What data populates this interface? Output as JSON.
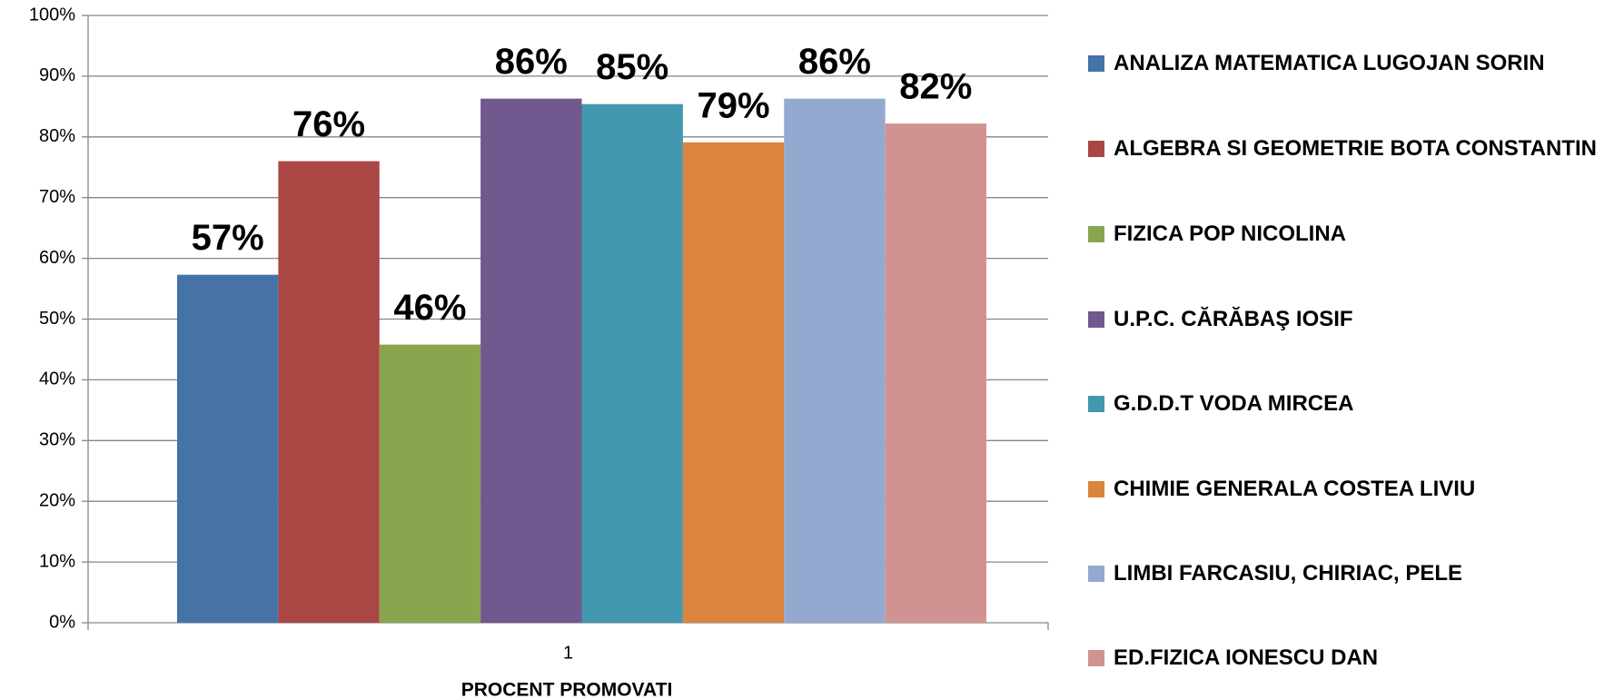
{
  "chart_data": {
    "type": "bar",
    "categories": [
      "1"
    ],
    "xlabel": "PROCENT PROMOVATI",
    "series": [
      {
        "name": "ANALIZA MATEMATICA LUGOJAN SORIN",
        "color": "#4572a7",
        "values": [
          57.3
        ],
        "value_labels": [
          "57%"
        ]
      },
      {
        "name": "ALGEBRA SI GEOMETRIE BOTA CONSTANTIN",
        "color": "#aa4643",
        "values": [
          76
        ],
        "value_labels": [
          "76%"
        ]
      },
      {
        "name": "FIZICA POP NICOLINA",
        "color": "#89a54e",
        "values": [
          45.8
        ],
        "value_labels": [
          "46%"
        ]
      },
      {
        "name": "U.P.C. CĂRĂBAŞ IOSIF",
        "color": "#71588f",
        "values": [
          86.3
        ],
        "value_labels": [
          "86%"
        ]
      },
      {
        "name": "G.D.D.T VODA MIRCEA",
        "color": "#4198af",
        "values": [
          85.4
        ],
        "value_labels": [
          "85%"
        ]
      },
      {
        "name": "CHIMIE GENERALA COSTEA LIVIU",
        "color": "#db843d",
        "values": [
          79.1
        ],
        "value_labels": [
          "79%"
        ]
      },
      {
        "name": "LIMBI FARCASIU, CHIRIAC, PELE",
        "color": "#93a9cf",
        "values": [
          86.3
        ],
        "value_labels": [
          "86%"
        ]
      },
      {
        "name": "ED.FIZICA IONESCU DAN",
        "color": "#d19392",
        "values": [
          82.2
        ],
        "value_labels": [
          "82%"
        ]
      }
    ],
    "ylim": [
      0,
      100
    ],
    "yticks": [
      {
        "value": 0,
        "label": "0%"
      },
      {
        "value": 10,
        "label": "10%"
      },
      {
        "value": 20,
        "label": "20%"
      },
      {
        "value": 30,
        "label": "30%"
      },
      {
        "value": 40,
        "label": "40%"
      },
      {
        "value": 50,
        "label": "50%"
      },
      {
        "value": 60,
        "label": "60%"
      },
      {
        "value": 70,
        "label": "70%"
      },
      {
        "value": 80,
        "label": "80%"
      },
      {
        "value": 90,
        "label": "90%"
      },
      {
        "value": 100,
        "label": "100%"
      }
    ],
    "grid": true,
    "legend": "right"
  }
}
